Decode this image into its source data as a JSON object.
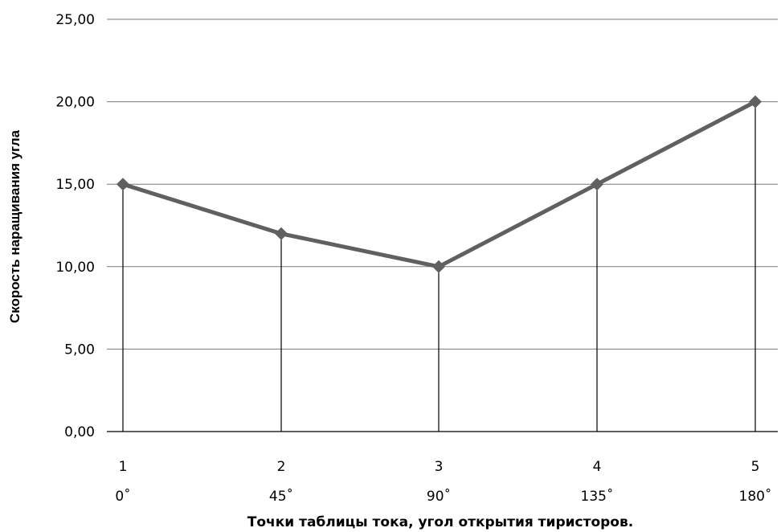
{
  "chart_data": {
    "type": "line",
    "title": "",
    "xlabel": "Точки таблицы тока, угол открытия тиристоров.",
    "ylabel": "Скорость наращивания  угла",
    "categories": [
      "1",
      "2",
      "3",
      "4",
      "5"
    ],
    "category_sublabels": [
      "0˚",
      "45˚",
      "90˚",
      "135˚",
      "180˚"
    ],
    "y_tick_labels": [
      "0,00",
      "5,00",
      "10,00",
      "15,00",
      "20,00",
      "25,00"
    ],
    "ylim": [
      0,
      25
    ],
    "y_ticks": [
      0,
      5,
      10,
      15,
      20,
      25
    ],
    "grid": true,
    "legend": "none",
    "series": [
      {
        "values": [
          15,
          12,
          10,
          15,
          20
        ],
        "color": "#606060",
        "marker": "diamond"
      }
    ],
    "drop_lines": true
  }
}
